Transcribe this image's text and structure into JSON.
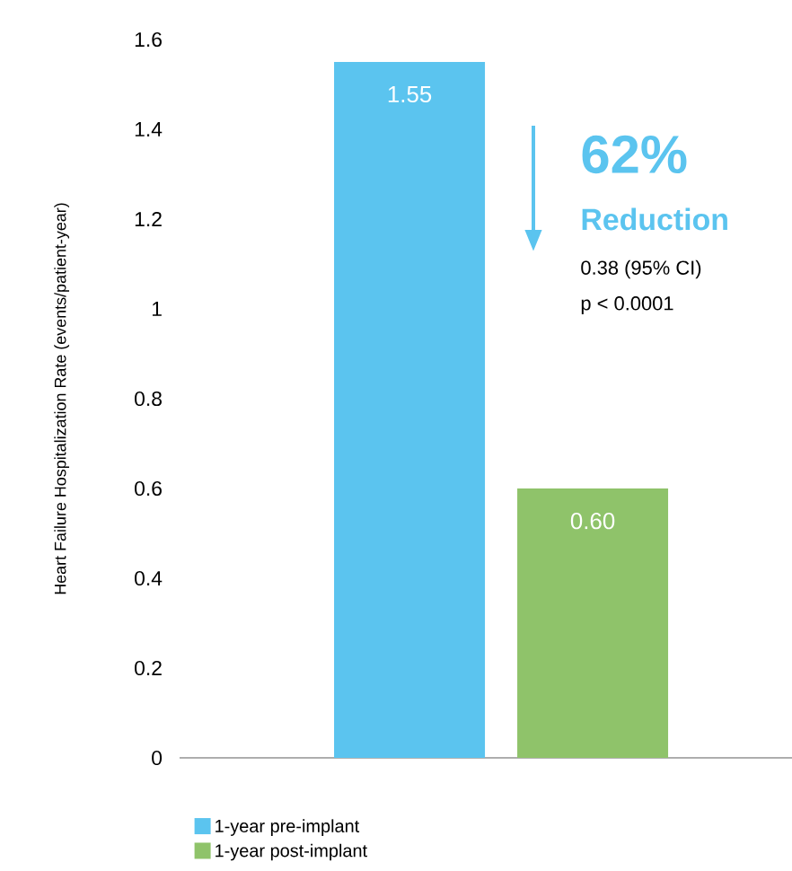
{
  "chart_data": {
    "type": "bar",
    "categories": [
      null
    ],
    "series": [
      {
        "name": "1-year pre-implant",
        "color": "#5bc4ef",
        "values": [
          1.55
        ],
        "value_labels": [
          "1.55"
        ]
      },
      {
        "name": "1-year post-implant",
        "color": "#8fc36a",
        "values": [
          0.6
        ],
        "value_labels": [
          "0.60"
        ]
      }
    ],
    "ylim": [
      0,
      1.6
    ],
    "yticks": [
      0,
      0.2,
      0.4,
      0.6,
      0.8,
      1,
      1.2,
      1.4,
      1.6
    ],
    "ylabel": "Heart Failure Hospitalization Rate (events/patient-year)",
    "annotations": [
      "62%",
      "Reduction",
      "0.38 (95% CI)",
      "p < 0.0001"
    ],
    "legend": "bottom"
  }
}
